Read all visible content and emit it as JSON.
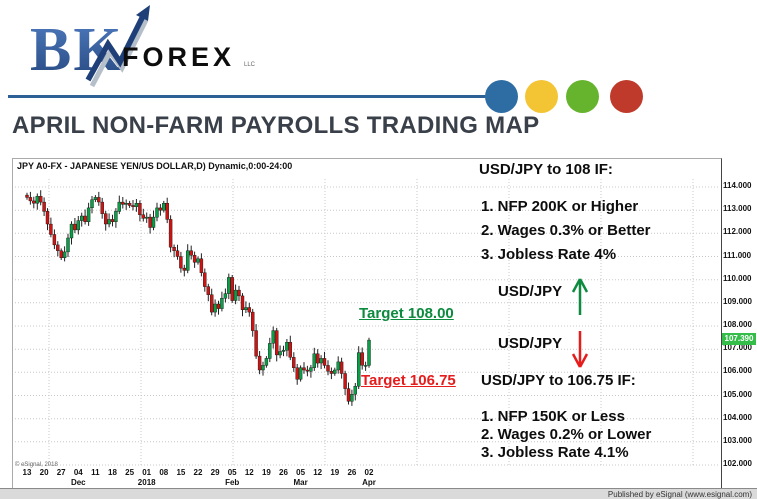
{
  "logo": {
    "bk": "BK",
    "forex": "FOREX",
    "llc": "LLC"
  },
  "header": {
    "title": "APRIL NON-FARM PAYROLLS TRADING MAP",
    "accent_colors": {
      "line": "#2d6096",
      "dots": [
        "#2e6da4",
        "#f3c433",
        "#66b32e",
        "#bf3a2b"
      ]
    }
  },
  "chart_data": {
    "type": "candlestick",
    "title": "JPY A0-FX - JAPANESE YEN/US DOLLAR,D) Dynamic,0:00-24:00",
    "ylim": [
      102,
      114
    ],
    "y_ticks": [
      "114.000",
      "113.000",
      "112.000",
      "111.000",
      "110.000",
      "109.000",
      "108.000",
      "107.000",
      "106.000",
      "105.000",
      "104.000",
      "103.000",
      "102.000"
    ],
    "current_price": "107.390",
    "week_labels": [
      "13",
      "20",
      "27",
      "04",
      "11",
      "18",
      "25",
      "01",
      "08",
      "15",
      "22",
      "29",
      "05",
      "12",
      "19",
      "26",
      "05",
      "12",
      "19",
      "26",
      "02"
    ],
    "month_labels": [
      {
        "text": "Dec",
        "week": 3
      },
      {
        "text": "2018",
        "week": 7
      },
      {
        "text": "Feb",
        "week": 12
      },
      {
        "text": "Mar",
        "week": 16
      },
      {
        "text": "Apr",
        "week": 20
      }
    ],
    "closes": [
      113.55,
      113.4,
      113.3,
      113.6,
      113.35,
      112.95,
      112.4,
      111.95,
      111.5,
      111.25,
      110.95,
      111.2,
      111.8,
      112.4,
      112.15,
      112.55,
      112.75,
      112.5,
      113.1,
      113.45,
      113.55,
      113.35,
      112.85,
      112.4,
      112.6,
      112.5,
      112.95,
      113.35,
      113.25,
      113.3,
      113.2,
      113.15,
      113.3,
      112.8,
      112.65,
      112.7,
      112.25,
      112.7,
      113.1,
      113.0,
      113.3,
      112.6,
      111.4,
      111.25,
      111.0,
      110.5,
      110.4,
      111.25,
      111.05,
      110.75,
      110.9,
      110.3,
      109.7,
      109.35,
      108.6,
      108.95,
      108.75,
      109.2,
      109.4,
      110.1,
      109.1,
      109.55,
      109.3,
      108.7,
      108.8,
      108.6,
      107.8,
      106.7,
      106.1,
      106.3,
      106.6,
      107.25,
      107.8,
      106.75,
      106.9,
      106.95,
      107.3,
      106.65,
      106.2,
      105.7,
      106.2,
      106.1,
      106.05,
      106.2,
      106.8,
      106.4,
      106.6,
      106.3,
      106.05,
      105.95,
      106.1,
      106.45,
      105.95,
      105.3,
      104.75,
      105.05,
      105.4,
      106.85,
      106.3,
      106.3,
      107.39
    ],
    "colors": {
      "up": "#0a9e48",
      "down": "#cc1414",
      "wick": "#222222",
      "tag_bg": "#35bd4a"
    },
    "copyright": "© eSignal, 2018"
  },
  "annotations": {
    "bull_title": "USD/JPY to 108 IF:",
    "bull_items": [
      "1. NFP 200K or Higher",
      "2. Wages 0.3% or Better",
      "3. Jobless Rate 4%"
    ],
    "pair_up": "USD/JPY",
    "target_up": "Target 108.00",
    "pair_down": "USD/JPY",
    "target_down": "Target 106.75",
    "bear_title": "USD/JPY to 106.75 IF:",
    "bear_items": [
      "1. NFP 150K or Less",
      "2. Wages 0.2% or Lower",
      "3. Jobless Rate 4.1%"
    ],
    "colors": {
      "bull": "#0c8a3e",
      "bear": "#e51c1c"
    }
  },
  "footer": {
    "published": "Published by eSignal (www.esignal.com)"
  }
}
